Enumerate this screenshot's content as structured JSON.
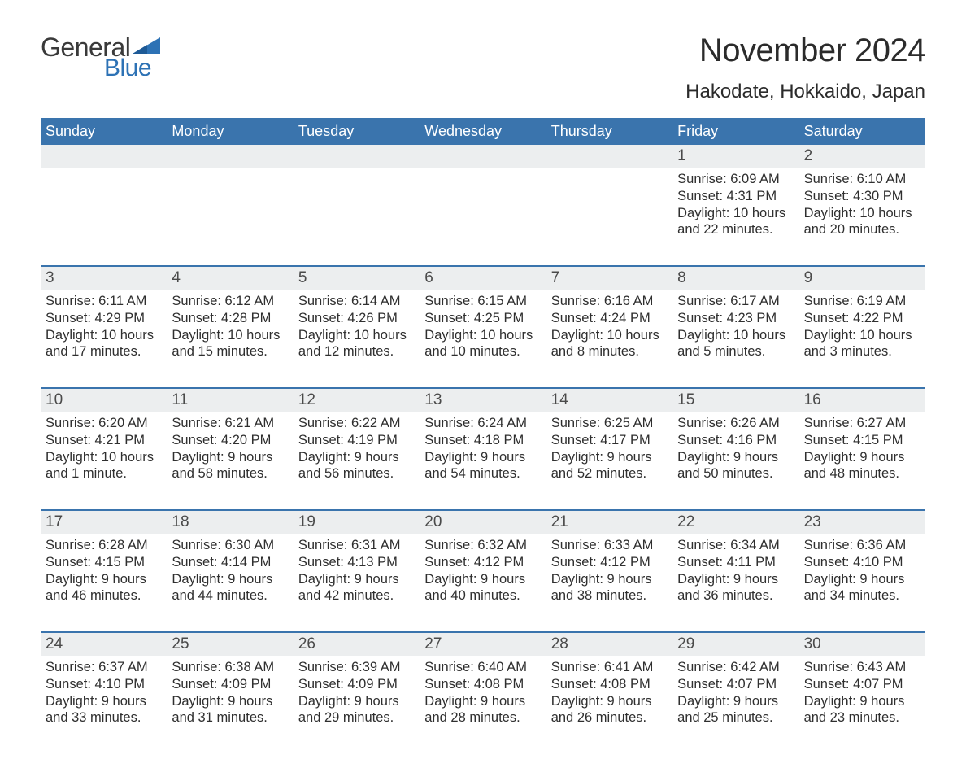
{
  "logo": {
    "word1": "General",
    "word2": "Blue",
    "flag_color": "#2d72b5",
    "text_gray": "#3a3a3a"
  },
  "title": "November 2024",
  "subtitle": "Hakodate, Hokkaido, Japan",
  "colors": {
    "header_bg": "#3a74ad",
    "daynum_bg": "#eceeef",
    "row_border": "#3a74ad",
    "text": "#2f2f2f",
    "title_text": "#2b2b2b"
  },
  "days_of_week": [
    "Sunday",
    "Monday",
    "Tuesday",
    "Wednesday",
    "Thursday",
    "Friday",
    "Saturday"
  ],
  "weeks": [
    [
      {
        "n": "",
        "sunrise": "",
        "sunset": "",
        "daylight": ""
      },
      {
        "n": "",
        "sunrise": "",
        "sunset": "",
        "daylight": ""
      },
      {
        "n": "",
        "sunrise": "",
        "sunset": "",
        "daylight": ""
      },
      {
        "n": "",
        "sunrise": "",
        "sunset": "",
        "daylight": ""
      },
      {
        "n": "",
        "sunrise": "",
        "sunset": "",
        "daylight": ""
      },
      {
        "n": "1",
        "sunrise": "Sunrise: 6:09 AM",
        "sunset": "Sunset: 4:31 PM",
        "daylight": "Daylight: 10 hours and 22 minutes."
      },
      {
        "n": "2",
        "sunrise": "Sunrise: 6:10 AM",
        "sunset": "Sunset: 4:30 PM",
        "daylight": "Daylight: 10 hours and 20 minutes."
      }
    ],
    [
      {
        "n": "3",
        "sunrise": "Sunrise: 6:11 AM",
        "sunset": "Sunset: 4:29 PM",
        "daylight": "Daylight: 10 hours and 17 minutes."
      },
      {
        "n": "4",
        "sunrise": "Sunrise: 6:12 AM",
        "sunset": "Sunset: 4:28 PM",
        "daylight": "Daylight: 10 hours and 15 minutes."
      },
      {
        "n": "5",
        "sunrise": "Sunrise: 6:14 AM",
        "sunset": "Sunset: 4:26 PM",
        "daylight": "Daylight: 10 hours and 12 minutes."
      },
      {
        "n": "6",
        "sunrise": "Sunrise: 6:15 AM",
        "sunset": "Sunset: 4:25 PM",
        "daylight": "Daylight: 10 hours and 10 minutes."
      },
      {
        "n": "7",
        "sunrise": "Sunrise: 6:16 AM",
        "sunset": "Sunset: 4:24 PM",
        "daylight": "Daylight: 10 hours and 8 minutes."
      },
      {
        "n": "8",
        "sunrise": "Sunrise: 6:17 AM",
        "sunset": "Sunset: 4:23 PM",
        "daylight": "Daylight: 10 hours and 5 minutes."
      },
      {
        "n": "9",
        "sunrise": "Sunrise: 6:19 AM",
        "sunset": "Sunset: 4:22 PM",
        "daylight": "Daylight: 10 hours and 3 minutes."
      }
    ],
    [
      {
        "n": "10",
        "sunrise": "Sunrise: 6:20 AM",
        "sunset": "Sunset: 4:21 PM",
        "daylight": "Daylight: 10 hours and 1 minute."
      },
      {
        "n": "11",
        "sunrise": "Sunrise: 6:21 AM",
        "sunset": "Sunset: 4:20 PM",
        "daylight": "Daylight: 9 hours and 58 minutes."
      },
      {
        "n": "12",
        "sunrise": "Sunrise: 6:22 AM",
        "sunset": "Sunset: 4:19 PM",
        "daylight": "Daylight: 9 hours and 56 minutes."
      },
      {
        "n": "13",
        "sunrise": "Sunrise: 6:24 AM",
        "sunset": "Sunset: 4:18 PM",
        "daylight": "Daylight: 9 hours and 54 minutes."
      },
      {
        "n": "14",
        "sunrise": "Sunrise: 6:25 AM",
        "sunset": "Sunset: 4:17 PM",
        "daylight": "Daylight: 9 hours and 52 minutes."
      },
      {
        "n": "15",
        "sunrise": "Sunrise: 6:26 AM",
        "sunset": "Sunset: 4:16 PM",
        "daylight": "Daylight: 9 hours and 50 minutes."
      },
      {
        "n": "16",
        "sunrise": "Sunrise: 6:27 AM",
        "sunset": "Sunset: 4:15 PM",
        "daylight": "Daylight: 9 hours and 48 minutes."
      }
    ],
    [
      {
        "n": "17",
        "sunrise": "Sunrise: 6:28 AM",
        "sunset": "Sunset: 4:15 PM",
        "daylight": "Daylight: 9 hours and 46 minutes."
      },
      {
        "n": "18",
        "sunrise": "Sunrise: 6:30 AM",
        "sunset": "Sunset: 4:14 PM",
        "daylight": "Daylight: 9 hours and 44 minutes."
      },
      {
        "n": "19",
        "sunrise": "Sunrise: 6:31 AM",
        "sunset": "Sunset: 4:13 PM",
        "daylight": "Daylight: 9 hours and 42 minutes."
      },
      {
        "n": "20",
        "sunrise": "Sunrise: 6:32 AM",
        "sunset": "Sunset: 4:12 PM",
        "daylight": "Daylight: 9 hours and 40 minutes."
      },
      {
        "n": "21",
        "sunrise": "Sunrise: 6:33 AM",
        "sunset": "Sunset: 4:12 PM",
        "daylight": "Daylight: 9 hours and 38 minutes."
      },
      {
        "n": "22",
        "sunrise": "Sunrise: 6:34 AM",
        "sunset": "Sunset: 4:11 PM",
        "daylight": "Daylight: 9 hours and 36 minutes."
      },
      {
        "n": "23",
        "sunrise": "Sunrise: 6:36 AM",
        "sunset": "Sunset: 4:10 PM",
        "daylight": "Daylight: 9 hours and 34 minutes."
      }
    ],
    [
      {
        "n": "24",
        "sunrise": "Sunrise: 6:37 AM",
        "sunset": "Sunset: 4:10 PM",
        "daylight": "Daylight: 9 hours and 33 minutes."
      },
      {
        "n": "25",
        "sunrise": "Sunrise: 6:38 AM",
        "sunset": "Sunset: 4:09 PM",
        "daylight": "Daylight: 9 hours and 31 minutes."
      },
      {
        "n": "26",
        "sunrise": "Sunrise: 6:39 AM",
        "sunset": "Sunset: 4:09 PM",
        "daylight": "Daylight: 9 hours and 29 minutes."
      },
      {
        "n": "27",
        "sunrise": "Sunrise: 6:40 AM",
        "sunset": "Sunset: 4:08 PM",
        "daylight": "Daylight: 9 hours and 28 minutes."
      },
      {
        "n": "28",
        "sunrise": "Sunrise: 6:41 AM",
        "sunset": "Sunset: 4:08 PM",
        "daylight": "Daylight: 9 hours and 26 minutes."
      },
      {
        "n": "29",
        "sunrise": "Sunrise: 6:42 AM",
        "sunset": "Sunset: 4:07 PM",
        "daylight": "Daylight: 9 hours and 25 minutes."
      },
      {
        "n": "30",
        "sunrise": "Sunrise: 6:43 AM",
        "sunset": "Sunset: 4:07 PM",
        "daylight": "Daylight: 9 hours and 23 minutes."
      }
    ]
  ]
}
